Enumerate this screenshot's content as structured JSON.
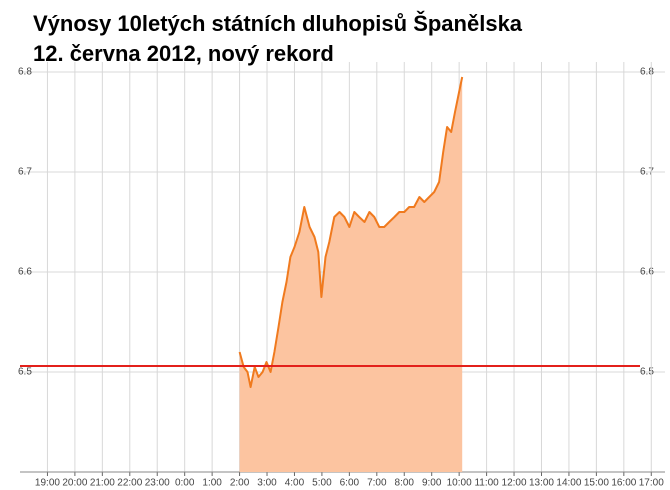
{
  "chart_data": {
    "type": "area",
    "title": "Výnosy 10letých státních dluhopisů Španělska",
    "subtitle": "12. června 2012, nový rekord",
    "x": [
      2.0,
      2.15,
      2.29,
      2.4,
      2.55,
      2.69,
      2.84,
      2.98,
      3.13,
      3.27,
      3.42,
      3.56,
      3.71,
      3.85,
      4.0,
      4.18,
      4.36,
      4.55,
      4.73,
      4.87,
      4.98,
      5.13,
      5.27,
      5.45,
      5.64,
      5.82,
      6.0,
      6.18,
      6.36,
      6.55,
      6.73,
      6.91,
      7.09,
      7.27,
      7.45,
      7.64,
      7.82,
      8.0,
      8.18,
      8.36,
      8.55,
      8.73,
      8.91,
      9.09,
      9.27,
      9.42,
      9.56,
      9.71,
      9.85,
      10.0,
      10.11
    ],
    "series": [
      {
        "color": "#f07a1e",
        "fill": "#fcc4a0",
        "values": [
          6.52,
          6.505,
          6.5,
          6.485,
          6.505,
          6.495,
          6.5,
          6.51,
          6.5,
          6.52,
          6.545,
          6.57,
          6.59,
          6.615,
          6.625,
          6.64,
          6.665,
          6.645,
          6.635,
          6.62,
          6.575,
          6.615,
          6.63,
          6.655,
          6.66,
          6.655,
          6.645,
          6.66,
          6.655,
          6.65,
          6.66,
          6.655,
          6.645,
          6.645,
          6.65,
          6.655,
          6.66,
          6.66,
          6.665,
          6.665,
          6.675,
          6.67,
          6.675,
          6.68,
          6.69,
          6.72,
          6.745,
          6.74,
          6.76,
          6.78,
          6.795
        ]
      }
    ],
    "reference_line": {
      "value": 6.506,
      "color": "#e3201b"
    },
    "xlim": [
      -6,
      17.5
    ],
    "xticks": [
      {
        "value": -5,
        "label": "19:00"
      },
      {
        "value": -4,
        "label": "20:00"
      },
      {
        "value": -3,
        "label": "21:00"
      },
      {
        "value": -2,
        "label": "22:00"
      },
      {
        "value": -1,
        "label": "23:00"
      },
      {
        "value": 0,
        "label": "0:00"
      },
      {
        "value": 1,
        "label": "1:00"
      },
      {
        "value": 2,
        "label": "2:00"
      },
      {
        "value": 3,
        "label": "3:00"
      },
      {
        "value": 4,
        "label": "4:00"
      },
      {
        "value": 5,
        "label": "5:00"
      },
      {
        "value": 6,
        "label": "6:00"
      },
      {
        "value": 7,
        "label": "7:00"
      },
      {
        "value": 8,
        "label": "8:00"
      },
      {
        "value": 9,
        "label": "9:00"
      },
      {
        "value": 10,
        "label": "10:00"
      },
      {
        "value": 11,
        "label": "11:00"
      },
      {
        "value": 12,
        "label": "12:00"
      },
      {
        "value": 13,
        "label": "13:00"
      },
      {
        "value": 14,
        "label": "14:00"
      },
      {
        "value": 15,
        "label": "15:00"
      },
      {
        "value": 16,
        "label": "16:00"
      },
      {
        "value": 17,
        "label": "17:00"
      }
    ],
    "ylim": [
      6.4,
      6.81
    ],
    "yticks": [
      6.5,
      6.6,
      6.7,
      6.8
    ],
    "grid": true
  }
}
